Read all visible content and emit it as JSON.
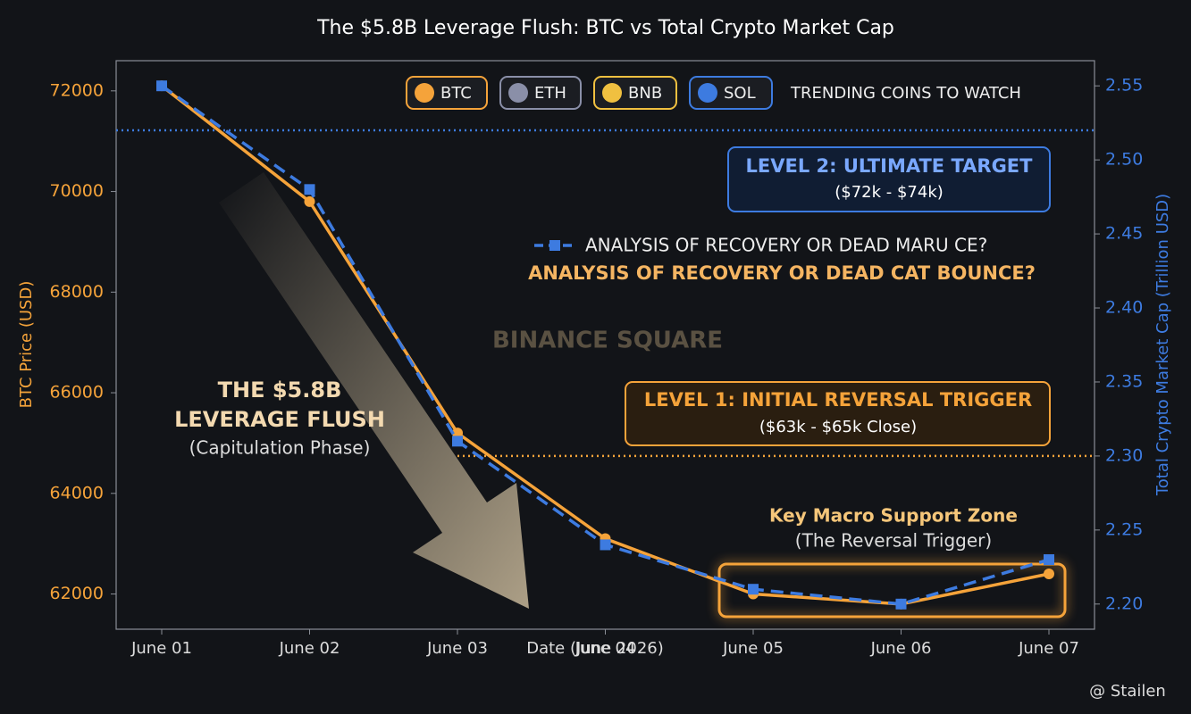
{
  "chart_data": {
    "type": "line",
    "title": "The $5.8B Leverage Flush: BTC vs Total Crypto Market Cap",
    "x_label": "Date (June 2026)",
    "y_label": "BTC Price (USD)",
    "y2_label": "Total Crypto Market Cap (Trillion USD)",
    "categories": [
      "June 01",
      "June 02",
      "June 03",
      "June 04",
      "June 05",
      "June 06",
      "June 07"
    ],
    "series": [
      {
        "color": "#f5a33a",
        "values": [
          72100,
          69800,
          65200,
          63100,
          62000,
          61800,
          62400
        ]
      },
      {
        "name": "ANALYSIS OF RECOVERY OR DEAD MARU CE?",
        "color": "#3d7be0",
        "axis": "y2",
        "values": [
          2.55,
          2.48,
          2.31,
          2.24,
          2.21,
          2.2,
          2.23
        ]
      }
    ],
    "ylim": [
      61300,
      72600
    ],
    "yticks": [
      62000,
      64000,
      66000,
      68000,
      70000,
      72000
    ],
    "y2lim": [
      2.183,
      2.567
    ],
    "y2ticks": [
      {
        "value": 2.2,
        "label": "2.20"
      },
      2.25,
      {
        "value": 2.3,
        "label": "2.30"
      },
      2.35,
      {
        "value": 2.4,
        "label": "2.40"
      },
      2.45,
      {
        "value": 2.5,
        "label": "2.50"
      },
      2.55
    ],
    "reference_lines": [
      {
        "axis": "y2",
        "value": 2.52,
        "color": "#3d7be0"
      },
      {
        "axis": "y2",
        "value": 2.3,
        "color": "#f5a33a"
      }
    ],
    "coins": [
      "BTC",
      "ETH",
      "BNB",
      "SOL"
    ],
    "coins_note": "TRENDING COINS TO WATCH",
    "annotations": [
      "LEVEL 2: ULTIMATE TARGET",
      "($72k - $74k)",
      "ANALYSIS OF RECOVERY OR DEAD CAT BOUNCE?",
      "BINANCE SQUARE",
      "THE $5.8B",
      "LEVERAGE FLUSH",
      "(Capitulation Phase)",
      "LEVEL 1: INITIAL REVERSAL TRIGGER",
      "($63k - $65k Close)",
      "Key Macro Support Zone",
      "(The Reversal Trigger)"
    ],
    "credit": "@ Stailen"
  }
}
